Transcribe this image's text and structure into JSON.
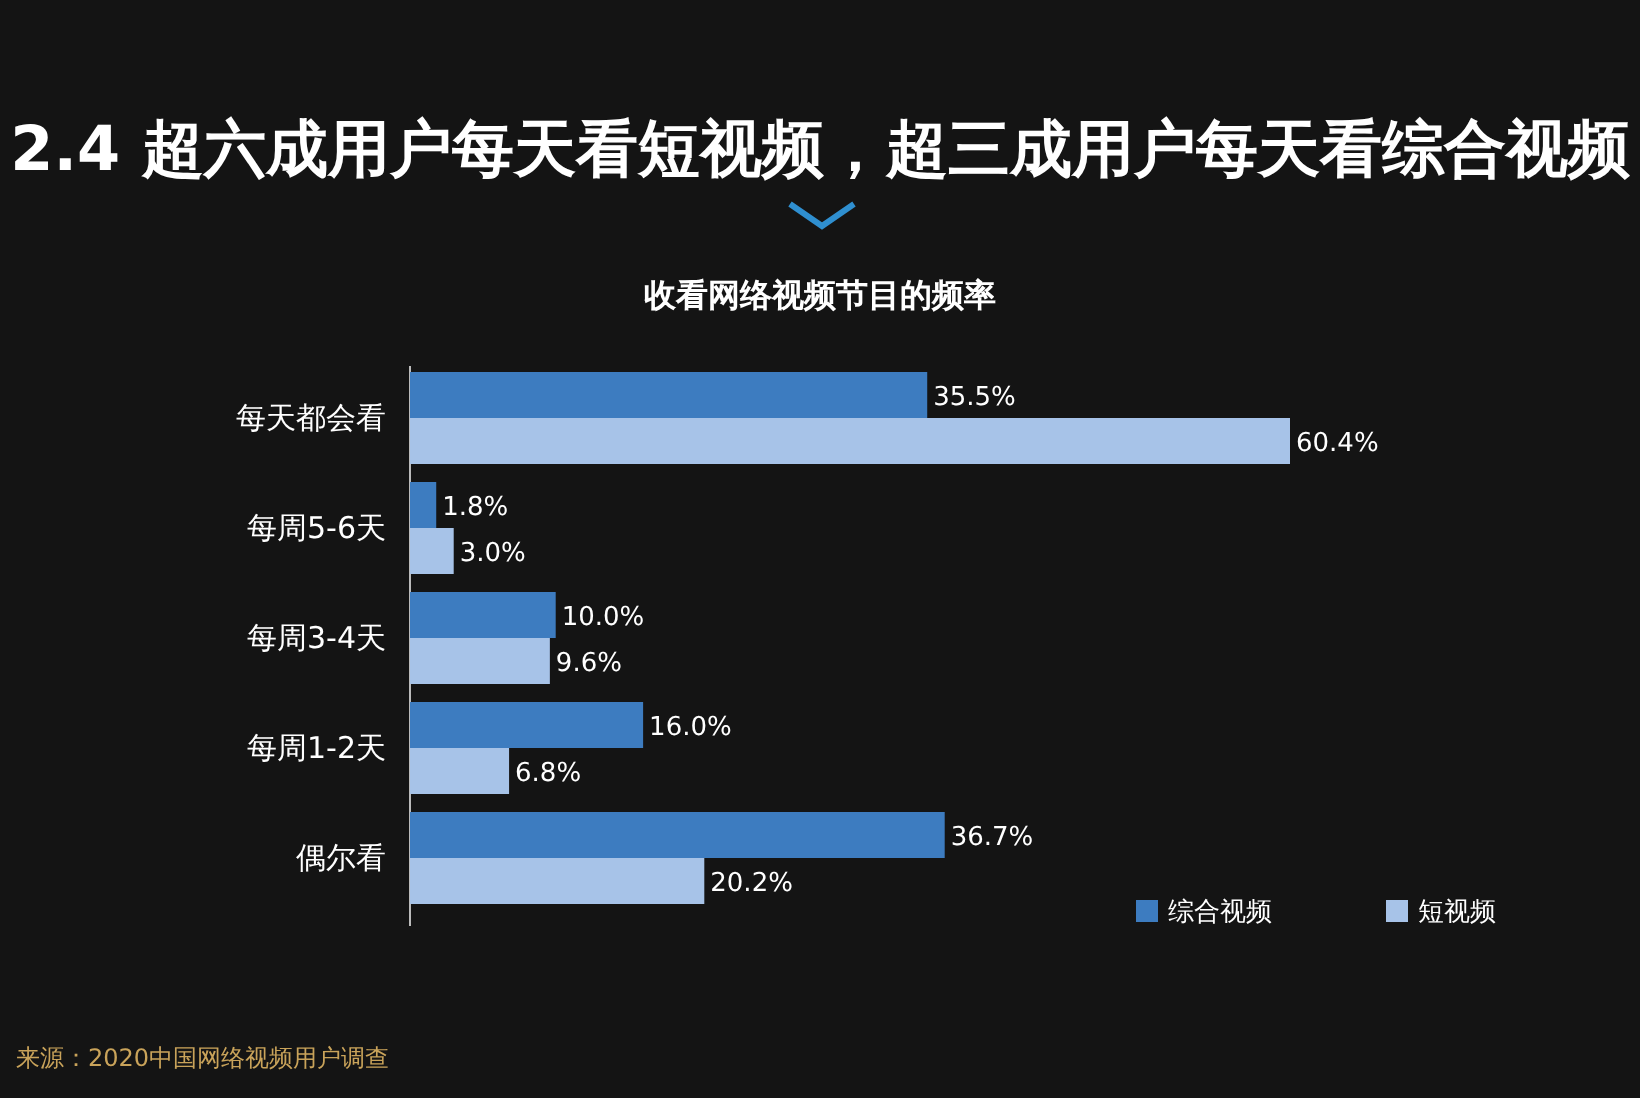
{
  "chart_data": {
    "type": "bar",
    "orientation": "horizontal",
    "title": "2.4 超六成用户每天看短视频，超三成用户每天看综合视频",
    "subtitle": "收看网络视频节目的频率",
    "categories": [
      "每天都会看",
      "每周5-6天",
      "每周3-4天",
      "每周1-2天",
      "偶尔看"
    ],
    "series": [
      {
        "name": "综合视频",
        "color": "#3d7cc0",
        "values": [
          35.5,
          1.8,
          10.0,
          16.0,
          36.7
        ],
        "value_labels": [
          "35.5%",
          "1.8%",
          "10.0%",
          "16.0%",
          "36.7%"
        ]
      },
      {
        "name": "短视频",
        "color": "#a7c3e8",
        "values": [
          60.4,
          3.0,
          9.6,
          6.8,
          20.2
        ],
        "value_labels": [
          "60.4%",
          "3.0%",
          "9.6%",
          "6.8%",
          "20.2%"
        ]
      }
    ],
    "legend": "bottom right",
    "annotations": [
      "来源：2020中国网络视频用户调查"
    ]
  }
}
